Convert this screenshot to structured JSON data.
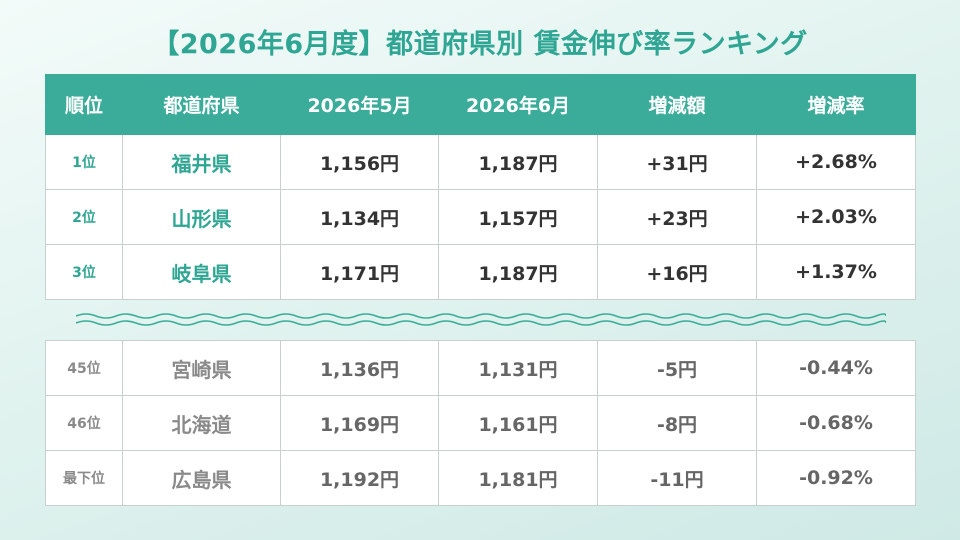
{
  "title": "【2026年6月度】都道府県別 賃金伸び率ランキング",
  "headers": [
    "順位",
    "都道府県",
    "2026年5月",
    "2026年6月",
    "増減額",
    "増減率"
  ],
  "top_rows": [
    {
      "rank": "1位",
      "pref": "福井県",
      "may": "1,156円",
      "jun": "1,187円",
      "diff": "+31円",
      "rate": "+2.68%"
    },
    {
      "rank": "2位",
      "pref": "山形県",
      "may": "1,134円",
      "jun": "1,157円",
      "diff": "+23円",
      "rate": "+2.03%"
    },
    {
      "rank": "3位",
      "pref": "岐阜県",
      "may": "1,171円",
      "jun": "1,187円",
      "diff": "+16円",
      "rate": "+1.37%"
    }
  ],
  "bottom_rows": [
    {
      "rank": "45位",
      "pref": "宮崎県",
      "may": "1,136円",
      "jun": "1,131円",
      "diff": "-5円",
      "rate": "-0.44%"
    },
    {
      "rank": "46位",
      "pref": "北海道",
      "may": "1,169円",
      "jun": "1,161円",
      "diff": "-8円",
      "rate": "-0.68%"
    },
    {
      "rank": "最下位",
      "pref": "広島県",
      "may": "1,192円",
      "jun": "1,181円",
      "diff": "-11円",
      "rate": "-0.92%"
    }
  ],
  "colors": {
    "accent": "#3aac99",
    "title": "#2ea693",
    "muted_text": "#8a8a8a"
  },
  "decor": {
    "separator": "wave-separator-icon"
  }
}
